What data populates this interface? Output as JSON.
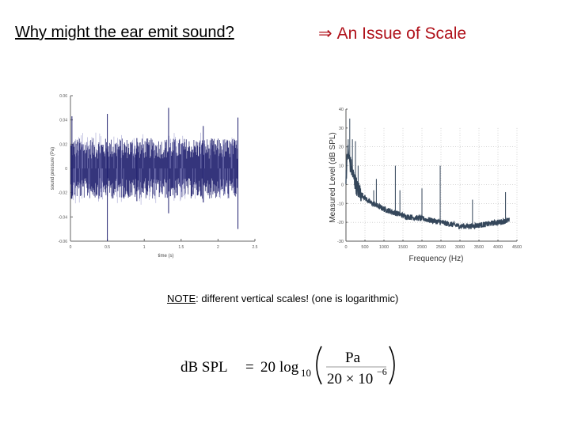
{
  "slide": {
    "title": "Why might the ear emit sound?",
    "subtitle_arrow": "⇒",
    "subtitle": "An Issue of Scale",
    "note_label": "NOTE",
    "note_text": ": different vertical scales! (one is logarithmic)",
    "formula": {
      "lhs": "dB SPL",
      "equals": "=",
      "coeff": "20",
      "func": "log",
      "base": "10",
      "numerator": "Pa",
      "denominator": "20 × 10",
      "exponent": "−6"
    },
    "colors": {
      "subtitle": "#b0121b",
      "waveform": "#1f1f6e",
      "spectrum": "#34465a"
    }
  },
  "chart_data": [
    {
      "type": "line",
      "title": "",
      "xlabel": "time (s)",
      "ylabel": "sound pressure (Pa)",
      "xlim": [
        0,
        2.5
      ],
      "ylim": [
        -0.06,
        0.06
      ],
      "x_ticks": [
        "0",
        "0.5",
        "1",
        "1.5",
        "2",
        "2.5"
      ],
      "y_ticks": [
        "0.06",
        "0.04",
        "0.02",
        "0",
        "-0.02",
        "-0.04",
        "-0.06"
      ],
      "grid": false,
      "description": "Dense noise-like waveform from 0 to ~2.27 s, typical amplitude about ±0.02 Pa with occasional spikes",
      "x": [
        0.02,
        0.5,
        0.9,
        1.33,
        1.8,
        2.27
      ],
      "series": [
        {
          "name": "spike_max",
          "values": [
            0.043,
            0.045,
            0.025,
            0.05,
            0.035,
            0.042
          ]
        },
        {
          "name": "spike_min",
          "values": [
            -0.025,
            -0.06,
            -0.027,
            -0.037,
            -0.028,
            -0.05
          ]
        }
      ],
      "band": {
        "upper": 0.02,
        "lower": -0.02,
        "end_time": 2.27
      }
    },
    {
      "type": "line",
      "title": "",
      "xlabel": "Frequency (Hz)",
      "ylabel": "Measured Level (dB SPL)",
      "xlim": [
        0,
        4500
      ],
      "ylim": [
        -30,
        40
      ],
      "x_ticks": [
        "0",
        "500",
        "1000",
        "1500",
        "2000",
        "2500",
        "3000",
        "3500",
        "4000",
        "4500"
      ],
      "y_ticks": [
        "40",
        "30",
        "20",
        "10",
        "0",
        "-10",
        "-20",
        "-30"
      ],
      "grid": true,
      "series": [
        {
          "name": "noise_floor",
          "x": [
            0,
            50,
            100,
            200,
            300,
            400,
            500,
            600,
            800,
            1000,
            1300,
            1600,
            2000,
            2500,
            3000,
            3300,
            3700,
            4000,
            4300
          ],
          "values": [
            5,
            18,
            12,
            4,
            -2,
            -5,
            -7,
            -9,
            -11,
            -13,
            -15,
            -17,
            -18,
            -20,
            -22,
            -22,
            -21,
            -20,
            -19
          ]
        },
        {
          "name": "emission_peaks",
          "x": [
            60,
            100,
            170,
            250,
            320,
            730,
            800,
            1300,
            1420,
            2000,
            2480,
            3330,
            4200
          ],
          "values": [
            24,
            35,
            24,
            23,
            10,
            -3,
            3,
            10,
            -3,
            -2,
            10,
            -8,
            -4
          ]
        }
      ]
    }
  ]
}
